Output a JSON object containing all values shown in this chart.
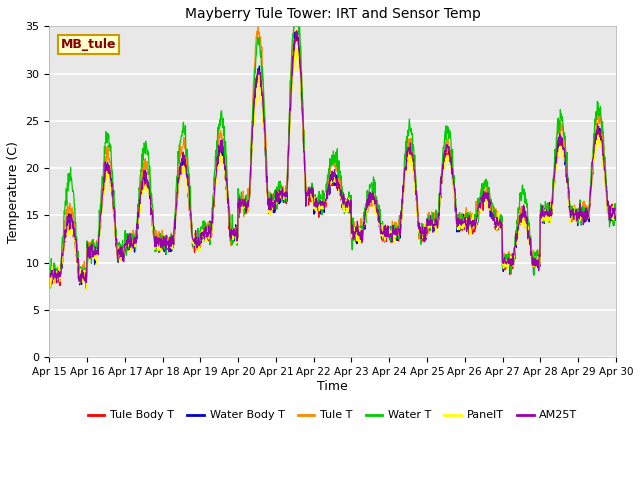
{
  "title": "Mayberry Tule Tower: IRT and Sensor Temp",
  "xlabel": "Time",
  "ylabel": "Temperature (C)",
  "ylim": [
    0,
    35
  ],
  "yticks": [
    0,
    5,
    10,
    15,
    20,
    25,
    30,
    35
  ],
  "xtick_labels": [
    "Apr 15",
    "Apr 16",
    "Apr 17",
    "Apr 18",
    "Apr 19",
    "Apr 20",
    "Apr 21",
    "Apr 22",
    "Apr 23",
    "Apr 24",
    "Apr 25",
    "Apr 26",
    "Apr 27",
    "Apr 28",
    "Apr 29",
    "Apr 30"
  ],
  "series_colors": {
    "Tule Body T": "#ff0000",
    "Water Body T": "#0000cc",
    "Tule T": "#ff8800",
    "Water T": "#00cc00",
    "PanelT": "#ffff00",
    "AM25T": "#9900aa"
  },
  "watermark_text": "MB_tule",
  "watermark_bg": "#ffffcc",
  "watermark_border": "#cc9900",
  "plot_bg": "#e8e8e8",
  "fig_bg": "#ffffff",
  "grid_color": "#ffffff",
  "day_base": [
    8.5,
    11,
    12,
    12,
    13,
    16,
    17,
    16,
    13,
    13,
    14,
    14,
    10,
    15,
    15
  ],
  "day_amp": [
    6,
    9,
    7,
    9,
    9,
    14,
    17,
    3,
    4,
    9,
    8,
    3,
    5,
    8,
    9
  ],
  "day_amp_green": [
    10,
    12,
    10,
    12,
    12,
    17,
    20,
    5,
    5,
    11,
    10,
    4,
    7,
    10,
    11
  ],
  "day_amp_orange": [
    7,
    10,
    8,
    10,
    10,
    18,
    19,
    4,
    3,
    9,
    8,
    3,
    5,
    9,
    10
  ]
}
